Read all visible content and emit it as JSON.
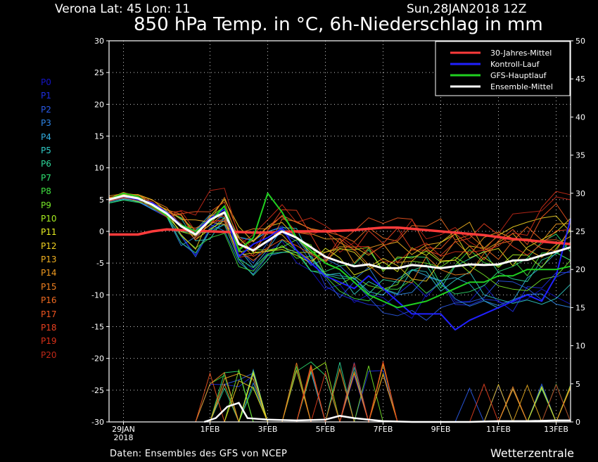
{
  "header": {
    "location": "Verona   Lat: 45  Lon: 11",
    "run": "Sun,28JAN2018  12Z",
    "title": "850 hPa Temp. in °C, 6h-Niederschlag in mm"
  },
  "footer": {
    "source": "Daten: Ensembles des GFS von NCEP",
    "brand": "Wetterzentrale"
  },
  "members": [
    {
      "label": "P0",
      "color": "#1414c8"
    },
    {
      "label": "P1",
      "color": "#1e2ee0"
    },
    {
      "label": "P2",
      "color": "#2a5ae8"
    },
    {
      "label": "P3",
      "color": "#2e86e8"
    },
    {
      "label": "P4",
      "color": "#32aee0"
    },
    {
      "label": "P5",
      "color": "#30ccc8"
    },
    {
      "label": "P6",
      "color": "#2ed89a"
    },
    {
      "label": "P7",
      "color": "#2ee070"
    },
    {
      "label": "P8",
      "color": "#40e040"
    },
    {
      "label": "P9",
      "color": "#78e828"
    },
    {
      "label": "P10",
      "color": "#a8f020"
    },
    {
      "label": "P11",
      "color": "#e8f020"
    },
    {
      "label": "P12",
      "color": "#f0d020"
    },
    {
      "label": "P13",
      "color": "#f0b020"
    },
    {
      "label": "P14",
      "color": "#f09a20"
    },
    {
      "label": "P15",
      "color": "#f08020"
    },
    {
      "label": "P16",
      "color": "#f06a20"
    },
    {
      "label": "P17",
      "color": "#f05420"
    },
    {
      "label": "P18",
      "color": "#e84020"
    },
    {
      "label": "P19",
      "color": "#d83018"
    },
    {
      "label": "P20",
      "color": "#c02818"
    }
  ],
  "chart_data": {
    "type": "line",
    "title": "850 hPa Temp. in °C, 6h-Niederschlag in mm",
    "y_left": {
      "min": -30,
      "max": 30,
      "ticks": [
        "30",
        "25",
        "20",
        "15",
        "10",
        "5",
        "0",
        "-5",
        "-10",
        "-15",
        "-20",
        "-25",
        "-30"
      ]
    },
    "y_right": {
      "min": 0,
      "max": 50,
      "ticks": [
        "50",
        "45",
        "40",
        "35",
        "30",
        "25",
        "20",
        "15",
        "10",
        "5",
        "0"
      ]
    },
    "x_ticks": [
      {
        "label": "29JAN",
        "sub": "2018",
        "day": 1
      },
      {
        "label": "1FEB",
        "day": 4
      },
      {
        "label": "3FEB",
        "day": 6
      },
      {
        "label": "5FEB",
        "day": 8
      },
      {
        "label": "7FEB",
        "day": 10
      },
      {
        "label": "9FEB",
        "day": 12
      },
      {
        "label": "11FEB",
        "day": 14
      },
      {
        "label": "13FEB",
        "day": 16
      }
    ],
    "x_range_days": [
      0.5,
      16.5
    ],
    "grid": true,
    "legend": {
      "position": "top-right",
      "entries": [
        {
          "name": "30-Jahres-Mittel",
          "color": "#ff3b3b"
        },
        {
          "name": "Kontroll-Lauf",
          "color": "#2020ff"
        },
        {
          "name": "GFS-Hauptlauf",
          "color": "#20d020"
        },
        {
          "name": "Ensemble-Mittel",
          "color": "#ffffff"
        }
      ]
    },
    "series": [
      {
        "name": "30-Jahres-Mittel",
        "color": "#ff3b3b",
        "width": 3.5,
        "days": [
          0.5,
          1,
          1.5,
          2,
          2.5,
          3,
          3.5,
          4,
          4.5,
          5,
          5.5,
          6,
          6.5,
          7,
          7.5,
          8,
          8.5,
          9,
          9.5,
          10,
          10.5,
          11,
          11.5,
          12,
          12.5,
          13,
          13.5,
          14,
          14.5,
          15,
          15.5,
          16,
          16.5
        ],
        "values": [
          -0.5,
          -0.5,
          -0.5,
          0,
          0.3,
          0.2,
          0.1,
          0,
          -0.1,
          -0.1,
          -0.2,
          -0.2,
          -0.1,
          0,
          0,
          0,
          0.1,
          0.2,
          0.4,
          0.6,
          0.6,
          0.4,
          0.2,
          0,
          -0.2,
          -0.4,
          -0.6,
          -0.9,
          -1.2,
          -1.4,
          -1.6,
          -1.8,
          -2
        ]
      },
      {
        "name": "Kontroll-Lauf",
        "color": "#2020ff",
        "width": 2,
        "days": [
          0.5,
          1,
          1.5,
          2,
          2.5,
          3,
          3.5,
          4,
          4.5,
          5,
          5.5,
          6,
          6.5,
          7,
          7.5,
          8,
          8.5,
          9,
          9.5,
          10,
          10.5,
          11,
          11.5,
          12,
          12.5,
          13,
          13.5,
          14,
          14.5,
          15,
          15.5,
          16,
          16.5
        ],
        "values": [
          5,
          5.5,
          5,
          4.5,
          3,
          1,
          0,
          2,
          3.5,
          -4,
          -2,
          -1,
          0.5,
          -3,
          -5,
          -7,
          -8,
          -9,
          -7,
          -9,
          -11,
          -13,
          -13,
          -13,
          -15.5,
          -14,
          -13,
          -12,
          -11,
          -10,
          -11,
          -7,
          2
        ]
      },
      {
        "name": "GFS-Hauptlauf",
        "color": "#20d020",
        "width": 2,
        "days": [
          0.5,
          1,
          1.5,
          2,
          2.5,
          3,
          3.5,
          4,
          4.5,
          5,
          5.5,
          6,
          6.5,
          7,
          7.5,
          8,
          8.5,
          9,
          9.5,
          10,
          10.5,
          11,
          11.5,
          12,
          12.5,
          13,
          13.5,
          14,
          14.5,
          15,
          15.5,
          16,
          16.5
        ],
        "values": [
          5,
          6,
          5.5,
          4,
          2.5,
          1,
          0,
          1.5,
          4,
          -3,
          -1,
          6,
          3,
          -1,
          -3,
          -5,
          -6,
          -8,
          -10,
          -11,
          -12,
          -11.5,
          -11,
          -10,
          -9,
          -8,
          -8,
          -7,
          -7,
          -6,
          -6,
          -6,
          -5.5
        ]
      },
      {
        "name": "Ensemble-Mittel",
        "color": "#ffffff",
        "width": 3,
        "days": [
          0.5,
          1,
          1.5,
          2,
          2.5,
          3,
          3.5,
          4,
          4.5,
          5,
          5.5,
          6,
          6.5,
          7,
          7.5,
          8,
          8.5,
          9,
          9.5,
          10,
          10.5,
          11,
          11.5,
          12,
          12.5,
          13,
          13.5,
          14,
          14.5,
          15,
          15.5,
          16,
          16.5
        ],
        "values": [
          5,
          5.6,
          5.2,
          4.2,
          2.8,
          0.8,
          -0.5,
          1.8,
          3,
          -2,
          -3,
          -1.5,
          0,
          -1,
          -2.5,
          -4,
          -4.8,
          -5.5,
          -5.2,
          -5.8,
          -5.8,
          -5.3,
          -5.5,
          -5.8,
          -5.5,
          -5.2,
          -5.3,
          -5.2,
          -4.6,
          -4.5,
          -3.8,
          -3.2,
          -2.5
        ]
      }
    ],
    "precip_mean": {
      "days": [
        3.8,
        4.2,
        4.6,
        5,
        5.3,
        6,
        7,
        8,
        8.5,
        9,
        9.5,
        10,
        11,
        12,
        13,
        14,
        15,
        16,
        16.5
      ],
      "values": [
        0,
        0.5,
        2,
        2.5,
        0.5,
        0.3,
        0.2,
        0.3,
        0.8,
        0.5,
        0.3,
        0.1,
        0,
        0,
        0,
        0.1,
        0.1,
        0.2,
        0.2
      ]
    }
  }
}
